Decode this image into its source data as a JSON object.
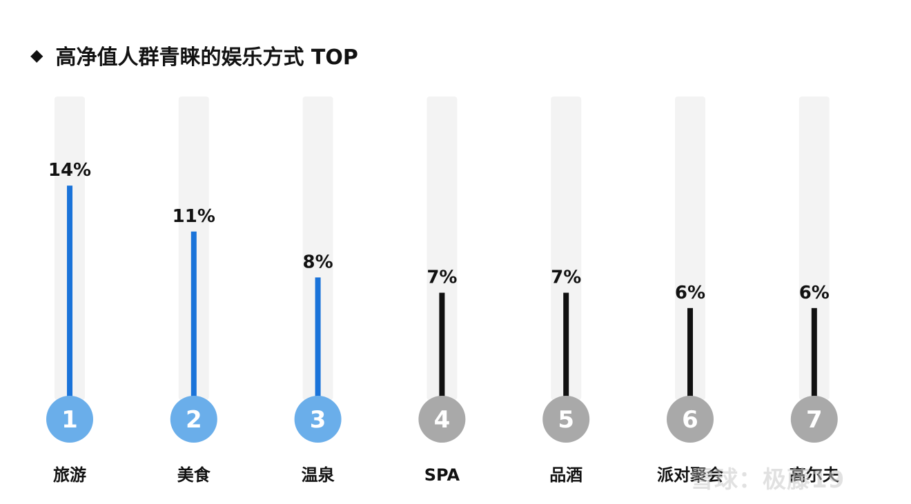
{
  "title": "高净值人群青睐的娱乐方式 TOP",
  "watermark": "雪球：极藤19",
  "colors": {
    "accent_bar": "#1a73d9",
    "accent_circle": "#6aaeea",
    "muted_bar": "#111111",
    "muted_circle": "#a9a9a9",
    "track": "#f3f3f3"
  },
  "chart_data": {
    "type": "bar",
    "title": "高净值人群青睐的娱乐方式 TOP",
    "unit": "%",
    "ylim": [
      0,
      16
    ],
    "categories": [
      "旅游",
      "美食",
      "温泉",
      "SPA",
      "品酒",
      "派对聚会",
      "高尔夫"
    ],
    "ranks": [
      "1",
      "2",
      "3",
      "4",
      "5",
      "6",
      "7"
    ],
    "values": [
      14,
      11,
      8,
      7,
      7,
      6,
      6
    ],
    "value_labels": [
      "14%",
      "11%",
      "8%",
      "7%",
      "7%",
      "6%",
      "6%"
    ],
    "highlight": [
      true,
      true,
      true,
      false,
      false,
      false,
      false
    ]
  }
}
